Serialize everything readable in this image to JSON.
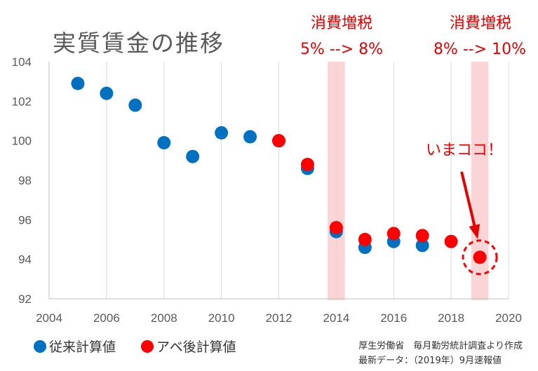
{
  "title": "実質賃金の推移",
  "chart_data": {
    "type": "scatter",
    "title": "実質賃金の推移",
    "xlim": [
      2004,
      2020
    ],
    "ylim": [
      92,
      104
    ],
    "x_ticks": [
      2004,
      2006,
      2008,
      2010,
      2012,
      2014,
      2016,
      2018,
      2020
    ],
    "y_ticks": [
      92,
      94,
      96,
      98,
      100,
      102,
      104
    ],
    "grid": "vertical",
    "legend_position": "bottom-left",
    "series": [
      {
        "name": "従来計算値",
        "color": "#0070c0",
        "points": [
          {
            "x": 2005,
            "y": 102.9
          },
          {
            "x": 2006,
            "y": 102.4
          },
          {
            "x": 2007,
            "y": 101.8
          },
          {
            "x": 2008,
            "y": 99.9
          },
          {
            "x": 2009,
            "y": 99.2
          },
          {
            "x": 2010,
            "y": 100.4
          },
          {
            "x": 2011,
            "y": 100.2
          },
          {
            "x": 2012,
            "y": 100.0
          },
          {
            "x": 2013,
            "y": 98.6
          },
          {
            "x": 2014,
            "y": 95.4
          },
          {
            "x": 2015,
            "y": 94.6
          },
          {
            "x": 2016,
            "y": 94.9
          },
          {
            "x": 2017,
            "y": 94.7
          }
        ]
      },
      {
        "name": "アベ後計算値",
        "color": "#ff0000",
        "points": [
          {
            "x": 2012,
            "y": 100.0
          },
          {
            "x": 2013,
            "y": 98.8
          },
          {
            "x": 2014,
            "y": 95.6
          },
          {
            "x": 2015,
            "y": 95.0
          },
          {
            "x": 2016,
            "y": 95.3
          },
          {
            "x": 2017,
            "y": 95.2
          },
          {
            "x": 2018,
            "y": 94.9
          },
          {
            "x": 2019,
            "y": 94.1
          }
        ]
      }
    ],
    "highlight_bands": [
      {
        "x_from": 2013.7,
        "x_to": 2014.3,
        "label_top": "消費増税",
        "label_bottom": "5% --> 8%",
        "color": "#fbd5d5"
      },
      {
        "x_from": 2018.7,
        "x_to": 2019.3,
        "label_top": "消費増税",
        "label_bottom": "8% --> 10%",
        "color": "#fbd5d5"
      }
    ],
    "callout": {
      "text": "いまココ！",
      "x": 2019,
      "y": 94.1,
      "color": "#e60000"
    }
  },
  "source_line1": "厚生労働省　毎月勤労統計調査より作成",
  "source_line2": "最新データ：（2019年）9月速報値"
}
